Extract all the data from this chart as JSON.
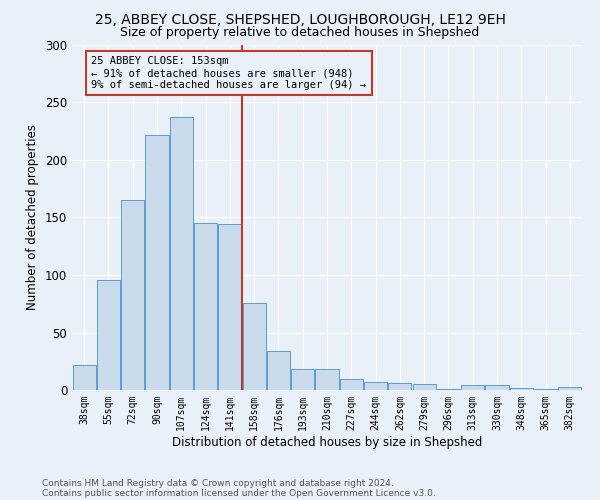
{
  "title1": "25, ABBEY CLOSE, SHEPSHED, LOUGHBOROUGH, LE12 9EH",
  "title2": "Size of property relative to detached houses in Shepshed",
  "xlabel": "Distribution of detached houses by size in Shepshed",
  "ylabel": "Number of detached properties",
  "bar_labels": [
    "38sqm",
    "55sqm",
    "72sqm",
    "90sqm",
    "107sqm",
    "124sqm",
    "141sqm",
    "158sqm",
    "176sqm",
    "193sqm",
    "210sqm",
    "227sqm",
    "244sqm",
    "262sqm",
    "279sqm",
    "296sqm",
    "313sqm",
    "330sqm",
    "348sqm",
    "365sqm",
    "382sqm"
  ],
  "bar_heights": [
    22,
    96,
    165,
    222,
    237,
    145,
    144,
    76,
    34,
    18,
    18,
    10,
    7,
    6,
    5,
    1,
    4,
    4,
    2,
    1,
    3
  ],
  "bar_color": "#c9daea",
  "bar_edge_color": "#5b9bd5",
  "vline_x": 7.0,
  "vline_color": "#c0392b",
  "annotation_text": "25 ABBEY CLOSE: 153sqm\n← 91% of detached houses are smaller (948)\n9% of semi-detached houses are larger (94) →",
  "annotation_box_color": "#c0392b",
  "ylim": [
    0,
    300
  ],
  "yticks": [
    0,
    50,
    100,
    150,
    200,
    250,
    300
  ],
  "footer1": "Contains HM Land Registry data © Crown copyright and database right 2024.",
  "footer2": "Contains public sector information licensed under the Open Government Licence v3.0.",
  "bg_color": "#eaf0f8",
  "grid_color": "#ffffff",
  "title1_fontsize": 10,
  "title2_fontsize": 9,
  "xlabel_fontsize": 8.5,
  "ylabel_fontsize": 8.5,
  "footer_fontsize": 6.5,
  "ann_fontsize": 7.5
}
